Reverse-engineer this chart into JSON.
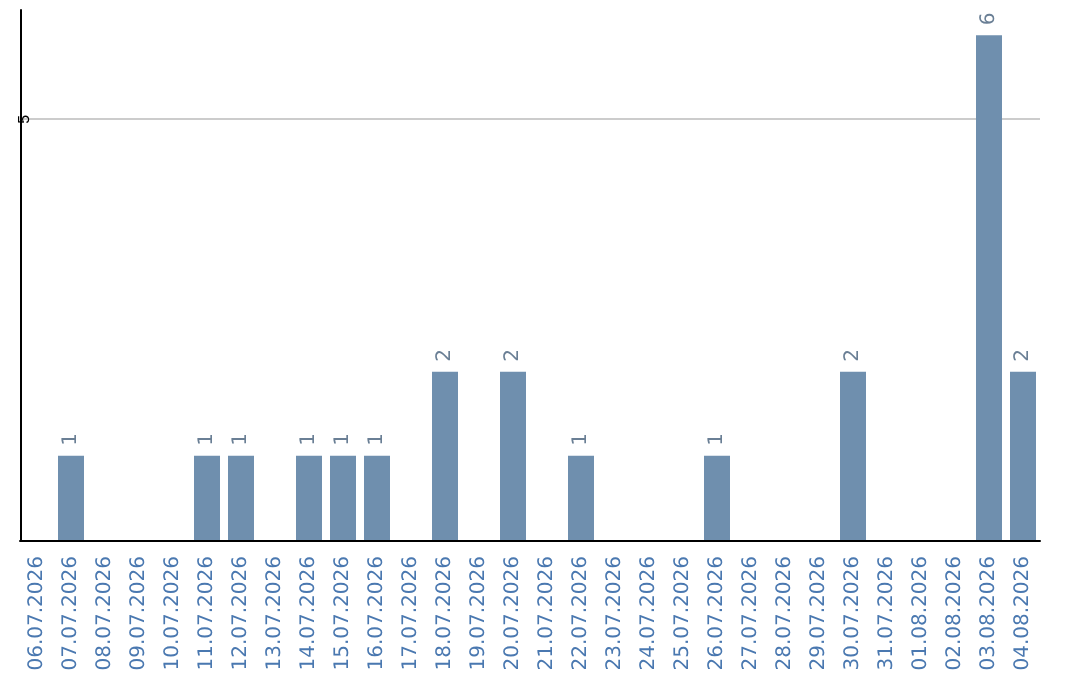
{
  "chart_data": {
    "type": "bar",
    "categories": [
      "06.07.2026",
      "07.07.2026",
      "08.07.2026",
      "09.07.2026",
      "10.07.2026",
      "11.07.2026",
      "12.07.2026",
      "13.07.2026",
      "14.07.2026",
      "15.07.2026",
      "16.07.2026",
      "17.07.2026",
      "18.07.2026",
      "19.07.2026",
      "20.07.2026",
      "21.07.2026",
      "22.07.2026",
      "23.07.2026",
      "24.07.2026",
      "25.07.2026",
      "26.07.2026",
      "27.07.2026",
      "28.07.2026",
      "29.07.2026",
      "30.07.2026",
      "31.07.2026",
      "01.08.2026",
      "02.08.2026",
      "03.08.2026",
      "04.08.2026"
    ],
    "values": [
      0,
      1,
      0,
      0,
      0,
      1,
      1,
      0,
      1,
      1,
      1,
      0,
      2,
      0,
      2,
      0,
      1,
      0,
      0,
      0,
      1,
      0,
      0,
      0,
      2,
      0,
      0,
      0,
      6,
      2
    ],
    "value_labels": [
      null,
      "1",
      null,
      null,
      null,
      "1",
      "1",
      null,
      "1",
      "1",
      "1",
      null,
      "2",
      null,
      "2",
      null,
      "1",
      null,
      null,
      null,
      "1",
      null,
      null,
      null,
      "2",
      null,
      null,
      null,
      "6",
      "2"
    ],
    "color": "#6f8fae",
    "ylim": [
      0,
      6.3
    ],
    "yticks": [
      5
    ],
    "grid": "y"
  }
}
